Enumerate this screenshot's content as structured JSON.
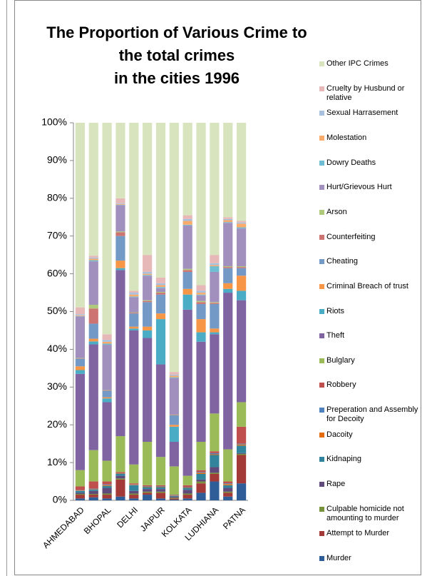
{
  "chart_data": {
    "type": "stacked_bar",
    "title": [
      "The Proportion of Various Crime to",
      "the total crimes",
      "in the cities 1996"
    ],
    "categories": [
      "AHMEDABAD",
      null,
      "BHOPAL",
      null,
      "DELHI",
      null,
      "JAIPUR",
      null,
      "KOLKATA",
      null,
      "LUDHIANA",
      null,
      "PATNA"
    ],
    "ylim": [
      0,
      100
    ],
    "yticks": [
      {
        "value": 0,
        "label": "0%"
      },
      {
        "value": 10,
        "label": "10%"
      },
      {
        "value": 20,
        "label": "20%"
      },
      {
        "value": 30,
        "label": "30%"
      },
      {
        "value": 40,
        "label": "40%"
      },
      {
        "value": 50,
        "label": "50%"
      },
      {
        "value": 60,
        "label": "60%"
      },
      {
        "value": 70,
        "label": "70%"
      },
      {
        "value": 80,
        "label": "80%"
      },
      {
        "value": 90,
        "label": "90%"
      },
      {
        "value": 100,
        "label": "100%"
      }
    ],
    "grid": false,
    "legend": "right",
    "series": [
      {
        "name": "Murder",
        "color": "#2f5d97",
        "values": [
          0.5,
          0.8,
          0.5,
          1,
          0.5,
          1.5,
          0.5,
          0.2,
          0.5,
          2,
          5,
          1,
          4.5
        ]
      },
      {
        "name": "Attempt to Murder",
        "color": "#a33a38",
        "values": [
          1,
          0.7,
          1,
          4.5,
          1,
          0.5,
          1.5,
          0.3,
          1,
          2.5,
          2,
          1,
          7.5
        ]
      },
      {
        "name": "Culpable homicide not amounting to murder",
        "color": "#77933c",
        "values": [
          0.2,
          0.2,
          0.3,
          0.3,
          0.3,
          0.3,
          0.3,
          0.2,
          0.3,
          0.5,
          0.3,
          0.3,
          0.3
        ]
      },
      {
        "name": "Rape",
        "color": "#604a7b",
        "values": [
          0.3,
          0.8,
          1.5,
          0.7,
          0.7,
          0.7,
          0.7,
          0.3,
          1,
          0.5,
          1.5,
          1,
          0.2
        ]
      },
      {
        "name": "Kidnaping",
        "color": "#31849b",
        "values": [
          0.5,
          0.4,
          0.5,
          0.5,
          1.5,
          0.5,
          0.5,
          0.2,
          0.5,
          1.5,
          3.2,
          0.7,
          2
        ]
      },
      {
        "name": "Dacoity",
        "color": "#e46c0a",
        "values": [
          0.1,
          0.1,
          0.2,
          0.1,
          0.1,
          0.1,
          0.1,
          0.1,
          0.1,
          0.3,
          0.2,
          0.3,
          0.3
        ]
      },
      {
        "name": "Preperation and Assembly for Decoity",
        "color": "#4f81bd",
        "values": [
          0.1,
          0.1,
          0.2,
          0.1,
          0.1,
          0.1,
          0.1,
          0.1,
          0.1,
          0.2,
          0.3,
          0.2,
          0.2
        ]
      },
      {
        "name": "Robbery",
        "color": "#c0504d",
        "values": [
          1,
          1.9,
          0.8,
          0.3,
          0.3,
          0.3,
          0.3,
          0.1,
          0.5,
          0.5,
          0.5,
          0.5,
          4.5
        ]
      },
      {
        "name": "Bulglary",
        "color": "#9bbb59",
        "values": [
          4.3,
          8.3,
          5.5,
          9.5,
          5,
          11.5,
          7.5,
          7.5,
          2.5,
          7.5,
          10,
          8.5,
          6.5
        ]
      },
      {
        "name": "Theft",
        "color": "#8064a2",
        "values": [
          25.5,
          28,
          15.5,
          44,
          35.5,
          27.5,
          24.5,
          6.5,
          44,
          26.5,
          21,
          41.5,
          27
        ]
      },
      {
        "name": "Riots",
        "color": "#4bacc6",
        "values": [
          1,
          0.8,
          1,
          0.5,
          0.5,
          2,
          12,
          4,
          4,
          2.5,
          0.5,
          1,
          2.5
        ]
      },
      {
        "name": "Criminal Breach of trust",
        "color": "#f79646",
        "values": [
          1,
          0.7,
          0.3,
          2,
          0.5,
          1,
          1.5,
          0.5,
          1.5,
          3.5,
          1,
          1.5,
          4
        ]
      },
      {
        "name": "Cheating",
        "color": "#7399c6",
        "values": [
          2,
          4,
          1.7,
          6.5,
          3.5,
          6.5,
          5,
          2.5,
          4.5,
          4,
          6.5,
          4,
          2
        ]
      },
      {
        "name": "Counterfeiting",
        "color": "#cd7371",
        "values": [
          0.1,
          4,
          0.1,
          1,
          0.2,
          0.3,
          0.5,
          0.1,
          0.5,
          0.5,
          0.3,
          0.3,
          0.3
        ]
      },
      {
        "name": "Arson",
        "color": "#afc97a",
        "values": [
          0.1,
          1,
          0.1,
          0.2,
          0.1,
          0.2,
          0.2,
          0.1,
          0.3,
          0.3,
          0.2,
          0.2,
          0.2
        ]
      },
      {
        "name": "Hurt/Grievous Hurt",
        "color": "#a18fbd",
        "values": [
          11,
          11.5,
          12,
          7,
          4,
          6.5,
          1,
          9.7,
          11.5,
          1.5,
          8,
          11.5,
          10
        ]
      },
      {
        "name": "Dowry Deaths",
        "color": "#6fbdd3",
        "values": [
          0.1,
          0.3,
          0.3,
          0.1,
          0.2,
          0.2,
          0.3,
          0.2,
          0.2,
          0.2,
          1.5,
          0.2,
          0.3
        ]
      },
      {
        "name": "Molestation",
        "color": "#f9ab6b",
        "values": [
          0.2,
          0.4,
          0.5,
          0.2,
          0.5,
          0.3,
          0.5,
          0.4,
          1,
          0.5,
          0.3,
          0.5,
          1
        ]
      },
      {
        "name": "Sexual Harrasement",
        "color": "#a7c0de",
        "values": [
          0.3,
          0.3,
          0.5,
          0.2,
          0.5,
          0.5,
          0.5,
          0.3,
          0.5,
          0.5,
          0.5,
          0.3,
          0.3
        ]
      },
      {
        "name": "Cruelty by Husbund or relative",
        "color": "#e6b9b8",
        "values": [
          1.8,
          0.5,
          1.5,
          1.3,
          0.5,
          4.5,
          1.5,
          0.7,
          1,
          1.5,
          2.2,
          0.5,
          0.4
        ]
      },
      {
        "name": "Other IPC Crimes",
        "color": "#d7e4bd",
        "values": [
          48.9,
          35.2,
          56,
          20,
          44.5,
          35,
          41,
          66,
          24.5,
          43,
          35,
          25,
          26
        ]
      }
    ]
  }
}
